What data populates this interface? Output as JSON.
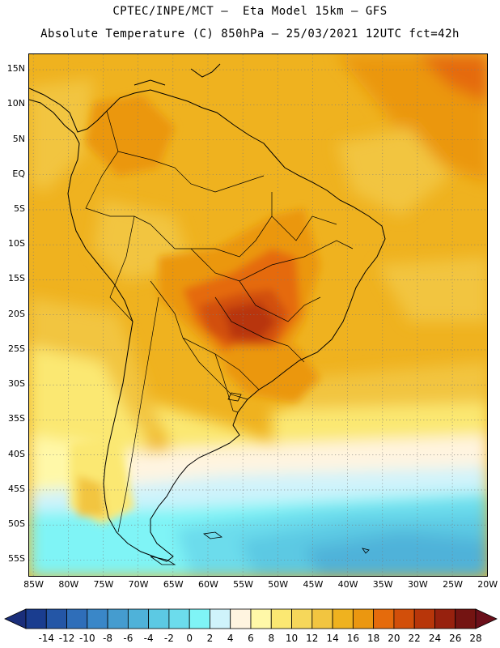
{
  "header": {
    "line1": "CPTEC/INPE/MCT –  Eta Model 15km – GFS",
    "line2": "Absolute Temperature (C) 850hPa – 25/03/2021 12UTC fct=42h"
  },
  "map": {
    "lat_labels": [
      "15N",
      "10N",
      "5N",
      "EQ",
      "5S",
      "10S",
      "15S",
      "20S",
      "25S",
      "30S",
      "35S",
      "40S",
      "45S",
      "50S",
      "55S"
    ],
    "lon_labels": [
      "85W",
      "80W",
      "75W",
      "70W",
      "65W",
      "60W",
      "55W",
      "50W",
      "45W",
      "40W",
      "35W",
      "30W",
      "25W",
      "20W"
    ],
    "extent": {
      "lon_min": -85.6,
      "lon_max": -19.8,
      "lat_min": -57.5,
      "lat_max": 17.2
    }
  },
  "colorbar": {
    "ticks": [
      "-14",
      "-12",
      "-10",
      "-8",
      "-6",
      "-4",
      "-2",
      "0",
      "2",
      "4",
      "6",
      "8",
      "10",
      "12",
      "14",
      "16",
      "18",
      "20",
      "22",
      "24",
      "26",
      "28"
    ],
    "colors": [
      "#1a3d8f",
      "#2456a6",
      "#2f6eb9",
      "#3a87c8",
      "#459ccf",
      "#4fb2d9",
      "#5cc9e3",
      "#6cdcec",
      "#7ff4f6",
      "#cff3fb",
      "#fff4e0",
      "#fff8a8",
      "#fbe872",
      "#f6d75a",
      "#f2c540",
      "#efb21f",
      "#eb9710",
      "#e56b0c",
      "#d24f0a",
      "#b8360a",
      "#97210e",
      "#741412"
    ],
    "low_arrow_color": "#1a2e7a",
    "high_arrow_color": "#6b0f1a"
  }
}
